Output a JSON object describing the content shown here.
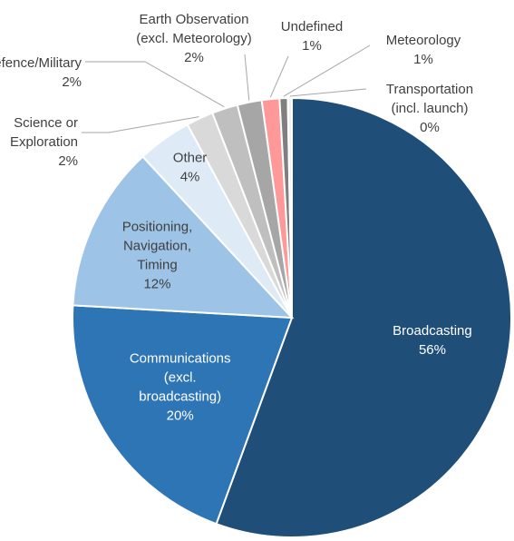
{
  "chart_data": {
    "type": "pie",
    "title": "",
    "show_values": true,
    "slices": [
      {
        "lines": [
          "Broadcasting"
        ],
        "value_label": "56%",
        "value": 55.6,
        "color": "#1f4e79",
        "label_color": "#ffffff"
      },
      {
        "lines": [
          "Communications",
          "(excl.",
          "broadcasting)"
        ],
        "value_label": "20%",
        "value": 20.3,
        "color": "#2e75b6",
        "label_color": "#ffffff"
      },
      {
        "lines": [
          "Positioning,",
          "Navigation,",
          "Timing"
        ],
        "value_label": "12%",
        "value": 12.2,
        "color": "#9dc3e6",
        "label_color": "#404040"
      },
      {
        "lines": [
          "Other"
        ],
        "value_label": "4%",
        "value": 4.0,
        "color": "#deebf7",
        "label_color": "#404040"
      },
      {
        "lines": [
          "Science or",
          "Exploration"
        ],
        "value_label": "2%",
        "value": 2.0,
        "color": "#d9d9d9",
        "label_color": "#404040"
      },
      {
        "lines": [
          "Defence/Military"
        ],
        "value_label": "2%",
        "value": 1.9,
        "color": "#bfbfbf",
        "label_color": "#404040"
      },
      {
        "lines": [
          "Earth Observation",
          "(excl. Meteorology)"
        ],
        "value_label": "2%",
        "value": 1.8,
        "color": "#a6a6a6",
        "label_color": "#404040"
      },
      {
        "lines": [
          "Undefined"
        ],
        "value_label": "1%",
        "value": 1.3,
        "color": "#ff9999",
        "label_color": "#404040"
      },
      {
        "lines": [
          "Meteorology"
        ],
        "value_label": "1%",
        "value": 0.6,
        "color": "#7f7f7f",
        "label_color": "#404040"
      },
      {
        "lines": [
          "Transportation",
          "(incl. launch)"
        ],
        "value_label": "0%",
        "value": 0.3,
        "color": "#f2f2f2",
        "label_color": "#404040"
      }
    ]
  }
}
